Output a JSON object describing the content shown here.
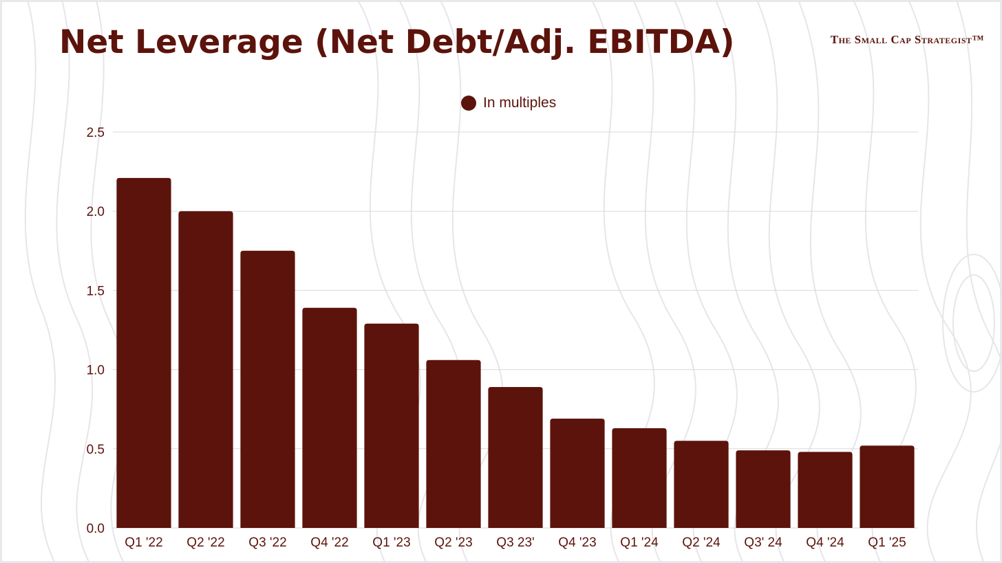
{
  "header": {
    "title": "Net Leverage (Net Debt/Adj.  EBITDA)",
    "brand": "The Small Cap Strategist™"
  },
  "colors": {
    "bar": "#5c130b",
    "text": "#5c130b",
    "grid": "#d9d9d9",
    "background": "#ffffff"
  },
  "chart_data": {
    "type": "bar",
    "title": "Net Leverage (Net Debt/Adj.  EBITDA)",
    "xlabel": "",
    "ylabel": "",
    "categories": [
      "Q1 '22",
      "Q2 '22",
      "Q3 '22",
      "Q4 '22",
      "Q1 '23",
      "Q2 '23",
      "Q3 23'",
      "Q4 '23",
      "Q1 '24",
      "Q2 '24",
      "Q3' 24",
      "Q4 '24",
      "Q1 '25"
    ],
    "series": [
      {
        "name": "In multiples",
        "values": [
          2.21,
          2.0,
          1.75,
          1.39,
          1.29,
          1.06,
          0.89,
          0.69,
          0.63,
          0.55,
          0.49,
          0.48,
          0.52
        ]
      }
    ],
    "ylim": [
      0,
      2.5
    ],
    "yticks": [
      "0.0",
      "0.5",
      "1.0",
      "1.5",
      "2.0",
      "2.5"
    ],
    "grid": true,
    "legend_position": "top-center"
  }
}
